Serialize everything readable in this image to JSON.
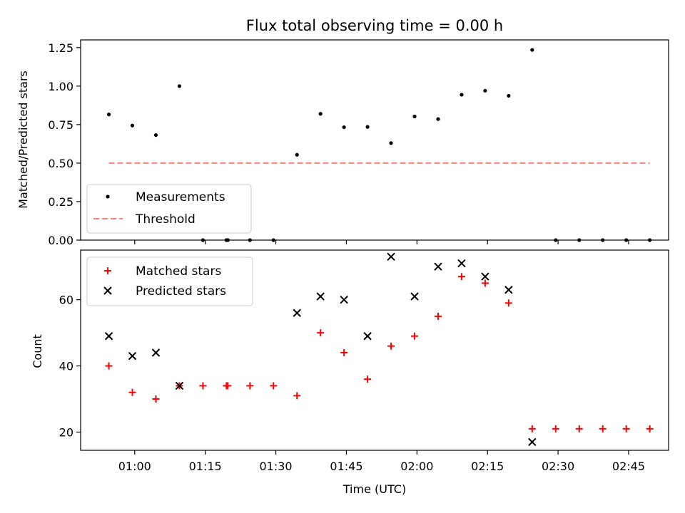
{
  "figure": {
    "title": "Flux total observing time = 0.00 h",
    "xlabel": "Time (UTC)"
  },
  "chart_data": [
    {
      "type": "scatter",
      "panel": "top",
      "title": "Flux total observing time = 0.00 h",
      "xlabel": "",
      "ylabel": "Matched/Predicted stars",
      "x_unit": "minutes since 00:00 UTC",
      "xlim": [
        48.5,
        173.5
      ],
      "ylim": [
        0.0,
        1.3
      ],
      "yticks": [
        0.0,
        0.25,
        0.5,
        0.75,
        1.0,
        1.25
      ],
      "ytick_labels": [
        "0.00",
        "0.25",
        "0.50",
        "0.75",
        "1.00",
        "1.25"
      ],
      "legend_position": "lower-left",
      "series": [
        {
          "name": "Measurements",
          "style": "dot",
          "color": "#000000",
          "x": [
            54.5,
            59.5,
            64.5,
            69.5,
            74.5,
            79.5,
            79.8,
            84.5,
            89.5,
            94.5,
            99.5,
            104.5,
            109.5,
            114.5,
            119.5,
            124.5,
            129.5,
            134.5,
            139.5,
            144.5,
            149.5,
            154.5,
            159.5,
            164.5,
            169.5
          ],
          "y": [
            0.816,
            0.744,
            0.682,
            1.0,
            0.0,
            0.0,
            0.0,
            0.0,
            0.0,
            0.554,
            0.82,
            0.733,
            0.735,
            0.63,
            0.803,
            0.786,
            0.944,
            0.97,
            0.937,
            1.235,
            0.0,
            0.0,
            0.0,
            0.0,
            0.0
          ]
        },
        {
          "name": "Threshold",
          "style": "dashed-line",
          "color": "#ff7f7f",
          "x": [
            54.5,
            169.5
          ],
          "y": [
            0.5,
            0.5
          ]
        }
      ]
    },
    {
      "type": "scatter",
      "panel": "bottom",
      "xlabel": "Time (UTC)",
      "ylabel": "Count",
      "x_unit": "minutes since 00:00 UTC",
      "xlim": [
        48.5,
        173.5
      ],
      "ylim": [
        14.5,
        75.0
      ],
      "xticks": [
        60,
        75,
        90,
        105,
        120,
        135,
        150,
        165
      ],
      "xtick_labels": [
        "01:00",
        "01:15",
        "01:30",
        "01:45",
        "02:00",
        "02:15",
        "02:30",
        "02:45"
      ],
      "yticks": [
        20,
        40,
        60
      ],
      "ytick_labels": [
        "20",
        "40",
        "60"
      ],
      "legend_position": "upper-left",
      "series": [
        {
          "name": "Matched stars",
          "marker": "plus",
          "color": "#ff0000",
          "x": [
            54.5,
            59.5,
            64.5,
            69.5,
            74.5,
            79.5,
            79.8,
            84.5,
            89.5,
            94.5,
            99.5,
            104.5,
            109.5,
            114.5,
            119.5,
            124.5,
            129.5,
            134.5,
            139.5,
            144.5,
            149.5,
            154.5,
            159.5,
            164.5,
            169.5
          ],
          "y": [
            40,
            32,
            30,
            34,
            34,
            34,
            34,
            34,
            34,
            31,
            50,
            44,
            36,
            46,
            49,
            55,
            67,
            65,
            59,
            21,
            21,
            21,
            21,
            21,
            21
          ]
        },
        {
          "name": "Predicted stars",
          "marker": "x",
          "color": "#000000",
          "x": [
            54.5,
            59.5,
            64.5,
            69.5,
            94.5,
            99.5,
            104.5,
            109.5,
            114.5,
            119.5,
            124.5,
            129.5,
            134.5,
            139.5,
            144.5
          ],
          "y": [
            49,
            43,
            44,
            34,
            56,
            61,
            60,
            49,
            73,
            61,
            70,
            71,
            67,
            63,
            17
          ]
        }
      ]
    }
  ]
}
